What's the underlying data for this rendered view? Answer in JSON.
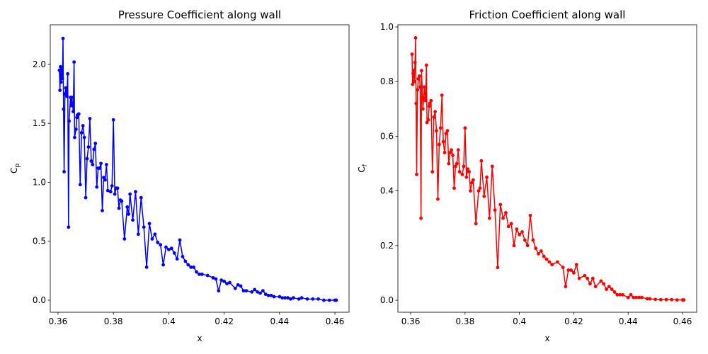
{
  "chart_data": [
    {
      "type": "line",
      "title": "Pressure Coefficient along wall",
      "xlabel": "x",
      "ylabel": "Cp",
      "color": "#0000ff",
      "x": [
        0.3605,
        0.3607,
        0.3609,
        0.3611,
        0.3613,
        0.3616,
        0.3618,
        0.362,
        0.3622,
        0.3625,
        0.3628,
        0.3632,
        0.3635,
        0.3638,
        0.364,
        0.3645,
        0.3648,
        0.365,
        0.3655,
        0.3658,
        0.366,
        0.3665,
        0.3668,
        0.367,
        0.3675,
        0.368,
        0.3685,
        0.369,
        0.3695,
        0.37,
        0.3705,
        0.371,
        0.3715,
        0.372,
        0.3725,
        0.373,
        0.3735,
        0.374,
        0.3745,
        0.375,
        0.3755,
        0.376,
        0.3765,
        0.377,
        0.3775,
        0.378,
        0.379,
        0.3795,
        0.38,
        0.3805,
        0.381,
        0.3815,
        0.382,
        0.3825,
        0.383,
        0.384,
        0.385,
        0.3855,
        0.386,
        0.387,
        0.388,
        0.389,
        0.39,
        0.391,
        0.392,
        0.393,
        0.394,
        0.395,
        0.396,
        0.397,
        0.398,
        0.399,
        0.4,
        0.401,
        0.402,
        0.403,
        0.404,
        0.405,
        0.406,
        0.407,
        0.408,
        0.409,
        0.41,
        0.411,
        0.412,
        0.414,
        0.416,
        0.417,
        0.418,
        0.419,
        0.42,
        0.421,
        0.422,
        0.424,
        0.425,
        0.426,
        0.427,
        0.428,
        0.43,
        0.431,
        0.432,
        0.433,
        0.434,
        0.435,
        0.436,
        0.437,
        0.438,
        0.44,
        0.441,
        0.442,
        0.443,
        0.444,
        0.445,
        0.447,
        0.448,
        0.45,
        0.452,
        0.454,
        0.456,
        0.458,
        0.46,
        0.4605
      ],
      "values": [
        1.95,
        1.78,
        1.98,
        1.85,
        1.97,
        1.88,
        2.22,
        1.62,
        1.09,
        1.75,
        1.8,
        1.73,
        1.92,
        0.62,
        1.52,
        1.72,
        1.65,
        1.72,
        1.6,
        2.02,
        1.38,
        1.45,
        1.55,
        1.57,
        1.58,
        0.98,
        1.42,
        1.48,
        1.38,
        0.87,
        1.2,
        1.3,
        1.54,
        1.18,
        1.15,
        1.28,
        1.33,
        0.96,
        1.12,
        1.12,
        1.16,
        0.76,
        1.04,
        1.02,
        1.15,
        0.93,
        0.92,
        0.97,
        1.53,
        0.9,
        0.95,
        0.95,
        0.78,
        0.85,
        0.84,
        0.52,
        0.79,
        0.73,
        0.9,
        0.68,
        0.92,
        0.56,
        0.87,
        0.62,
        0.28,
        0.65,
        0.52,
        0.56,
        0.49,
        0.47,
        0.3,
        0.45,
        0.43,
        0.44,
        0.4,
        0.35,
        0.51,
        0.37,
        0.33,
        0.3,
        0.28,
        0.28,
        0.24,
        0.22,
        0.22,
        0.21,
        0.19,
        0.18,
        0.08,
        0.17,
        0.16,
        0.14,
        0.15,
        0.1,
        0.13,
        0.12,
        0.08,
        0.08,
        0.07,
        0.09,
        0.07,
        0.06,
        0.08,
        0.05,
        0.04,
        0.04,
        0.03,
        0.03,
        0.02,
        0.02,
        0.02,
        0.01,
        0.02,
        0.01,
        0.02,
        0.01,
        0.01,
        0.01,
        0.0,
        0.0,
        0.0,
        0.0
      ],
      "xlim": [
        0.3572,
        0.4651
      ],
      "ylim": [
        -0.102,
        2.336
      ],
      "xticks": [
        0.36,
        0.38,
        0.4,
        0.42,
        0.44,
        0.46
      ],
      "yticks": [
        {
          "value": 0,
          "label": "0.0"
        },
        {
          "value": 0.5,
          "label": "0.5"
        },
        {
          "value": 1,
          "label": "1.0"
        },
        {
          "value": 1.5,
          "label": "1.5"
        },
        {
          "value": 2,
          "label": "2.0"
        }
      ]
    },
    {
      "type": "line",
      "title": "Friction Coefficient along wall",
      "xlabel": "x",
      "ylabel": "Cf",
      "color": "#ff0000",
      "x": [
        0.3605,
        0.3607,
        0.3609,
        0.3611,
        0.3613,
        0.3616,
        0.3618,
        0.362,
        0.3622,
        0.3625,
        0.3628,
        0.3632,
        0.3635,
        0.3638,
        0.364,
        0.3645,
        0.3648,
        0.365,
        0.3655,
        0.3658,
        0.366,
        0.3665,
        0.3668,
        0.367,
        0.3675,
        0.368,
        0.3685,
        0.369,
        0.3695,
        0.37,
        0.3705,
        0.371,
        0.3715,
        0.372,
        0.3725,
        0.373,
        0.3735,
        0.374,
        0.3745,
        0.375,
        0.3755,
        0.376,
        0.3765,
        0.377,
        0.3775,
        0.378,
        0.379,
        0.3795,
        0.38,
        0.3805,
        0.381,
        0.3815,
        0.382,
        0.3825,
        0.383,
        0.384,
        0.385,
        0.3855,
        0.386,
        0.387,
        0.388,
        0.389,
        0.39,
        0.391,
        0.392,
        0.393,
        0.394,
        0.395,
        0.396,
        0.397,
        0.398,
        0.399,
        0.4,
        0.401,
        0.402,
        0.403,
        0.404,
        0.405,
        0.406,
        0.407,
        0.408,
        0.409,
        0.41,
        0.411,
        0.412,
        0.414,
        0.416,
        0.417,
        0.418,
        0.419,
        0.42,
        0.421,
        0.422,
        0.424,
        0.425,
        0.426,
        0.427,
        0.428,
        0.43,
        0.431,
        0.432,
        0.433,
        0.434,
        0.435,
        0.436,
        0.437,
        0.438,
        0.44,
        0.441,
        0.442,
        0.443,
        0.444,
        0.445,
        0.447,
        0.448,
        0.45,
        0.452,
        0.454,
        0.456,
        0.458,
        0.46,
        0.4605
      ],
      "values": [
        0.9,
        0.79,
        0.83,
        0.84,
        0.8,
        0.87,
        0.96,
        0.72,
        0.46,
        0.77,
        0.81,
        0.82,
        0.78,
        0.3,
        0.84,
        0.7,
        0.74,
        0.78,
        0.73,
        0.86,
        0.65,
        0.66,
        0.71,
        0.72,
        0.73,
        0.47,
        0.67,
        0.69,
        0.62,
        0.37,
        0.57,
        0.63,
        0.75,
        0.58,
        0.54,
        0.61,
        0.62,
        0.5,
        0.54,
        0.55,
        0.53,
        0.41,
        0.49,
        0.5,
        0.55,
        0.47,
        0.46,
        0.49,
        0.63,
        0.45,
        0.48,
        0.47,
        0.4,
        0.43,
        0.44,
        0.28,
        0.4,
        0.41,
        0.51,
        0.38,
        0.45,
        0.3,
        0.49,
        0.33,
        0.12,
        0.35,
        0.3,
        0.32,
        0.27,
        0.28,
        0.2,
        0.26,
        0.24,
        0.25,
        0.22,
        0.2,
        0.31,
        0.22,
        0.19,
        0.17,
        0.18,
        0.16,
        0.15,
        0.14,
        0.13,
        0.14,
        0.12,
        0.05,
        0.11,
        0.11,
        0.1,
        0.13,
        0.08,
        0.09,
        0.08,
        0.06,
        0.08,
        0.05,
        0.07,
        0.06,
        0.04,
        0.05,
        0.04,
        0.03,
        0.02,
        0.02,
        0.02,
        0.01,
        0.02,
        0.01,
        0.01,
        0.01,
        0.01,
        0.005,
        0.005,
        0.003,
        0.002,
        0.002,
        0.002,
        0.001,
        0.001,
        0.001
      ],
      "xlim": [
        0.3553,
        0.4652
      ],
      "ylim": [
        -0.044,
        1.0078
      ],
      "xticks": [
        0.36,
        0.38,
        0.4,
        0.42,
        0.44,
        0.46
      ],
      "yticks": [
        {
          "value": 0,
          "label": "0.0"
        },
        {
          "value": 0.2,
          "label": "0.2"
        },
        {
          "value": 0.4,
          "label": "0.4"
        },
        {
          "value": 0.6,
          "label": "0.6"
        },
        {
          "value": 0.8,
          "label": "0.8"
        },
        {
          "value": 1,
          "label": "1.0"
        }
      ]
    }
  ]
}
